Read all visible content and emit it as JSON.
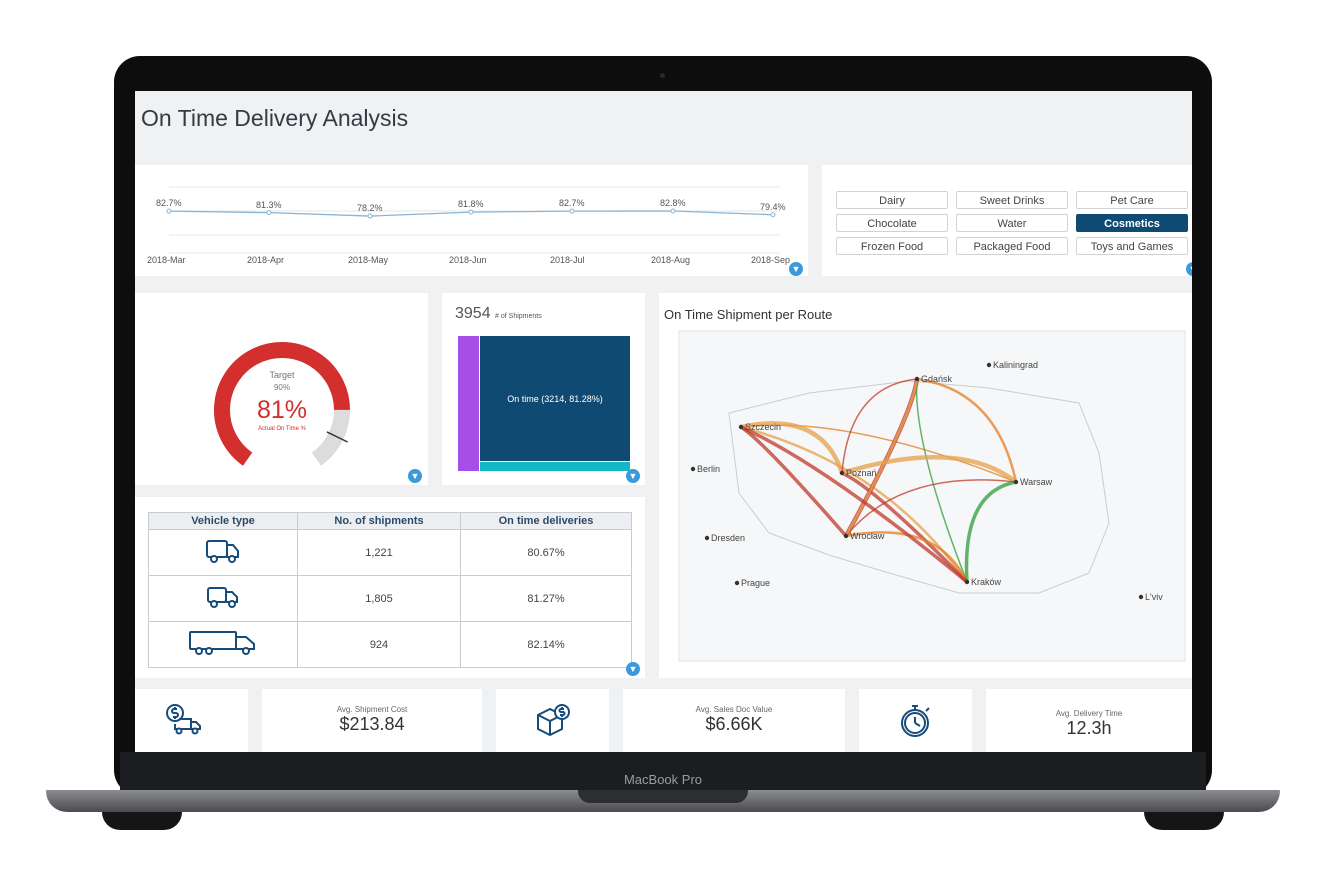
{
  "device": {
    "model_label": "MacBook Pro"
  },
  "dashboard": {
    "title": "On Time Delivery Analysis"
  },
  "trend": {
    "points": [
      {
        "month": "2018-Mar",
        "value_label": "82.7%",
        "value": 82.7
      },
      {
        "month": "2018-Apr",
        "value_label": "81.3%",
        "value": 81.3
      },
      {
        "month": "2018-May",
        "value_label": "78.2%",
        "value": 78.2
      },
      {
        "month": "2018-Jun",
        "value_label": "81.8%",
        "value": 81.8
      },
      {
        "month": "2018-Jul",
        "value_label": "82.7%",
        "value": 82.7
      },
      {
        "month": "2018-Aug",
        "value_label": "82.8%",
        "value": 82.8
      },
      {
        "month": "2018-Sep",
        "value_label": "79.4%",
        "value": 79.4
      }
    ],
    "line_color": "#8ab4d6"
  },
  "categories": {
    "items": [
      "Dairy",
      "Sweet Drinks",
      "Pet Care",
      "Chocolate",
      "Water",
      "Cosmetics",
      "Frozen Food",
      "Packaged Food",
      "Toys and Games"
    ],
    "selected": "Cosmetics"
  },
  "gauge": {
    "target_label": "Target",
    "target_value": "90%",
    "actual_value": "81%",
    "actual_label": "Actual On Time %",
    "actual_fraction": 0.81,
    "target_fraction": 0.9,
    "fill_color": "#d32f2f",
    "track_color": "#dcdcdc"
  },
  "shipments": {
    "count": "3954",
    "count_label": "# of Shipments",
    "on_time_label": "On time (3214, 81.28%)",
    "on_time_color": "#0e4a72",
    "late_color": "#a64ee8",
    "small_color": "#14b8c4"
  },
  "route_map": {
    "title": "On Time Shipment per Route",
    "cities": [
      "Kaliningrad",
      "Gdańsk",
      "Szczecin",
      "Berlin",
      "Poznań",
      "Warsaw",
      "Dresden",
      "Wrocław",
      "Prague",
      "Kraków",
      "L'viv"
    ]
  },
  "vehicle_table": {
    "headers": [
      "Vehicle type",
      "No. of shipments",
      "On time deliveries"
    ],
    "rows": [
      {
        "icon": "van-icon",
        "shipments": "1,221",
        "on_time": "80.67%"
      },
      {
        "icon": "small-truck-icon",
        "shipments": "1,805",
        "on_time": "81.27%"
      },
      {
        "icon": "large-truck-icon",
        "shipments": "924",
        "on_time": "82.14%"
      }
    ]
  },
  "kpis": [
    {
      "icon": "dollar-truck-icon",
      "label": "Avg. Shipment Cost",
      "value": "$213.84"
    },
    {
      "icon": "dollar-box-icon",
      "label": "Avg. Sales Doc Value",
      "value": "$6.66K"
    },
    {
      "icon": "stopwatch-icon",
      "label": "Avg. Delivery Time",
      "value": "12.3h"
    }
  ]
}
